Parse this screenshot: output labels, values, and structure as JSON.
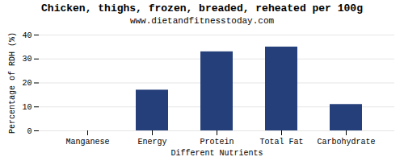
{
  "chart_data": {
    "type": "bar",
    "title": "Chicken, thighs, frozen, breaded, reheated per 100g",
    "subtitle": "www.dietandfitnesstoday.com",
    "xlabel": "Different Nutrients",
    "ylabel": "Percentage of RDH (%)",
    "categories": [
      "Manganese",
      "Energy",
      "Protein",
      "Total Fat",
      "Carbohydrate"
    ],
    "values": [
      0,
      17,
      33,
      35,
      11
    ],
    "color": "#253F7A",
    "ylim": [
      0,
      40
    ],
    "yticks": [
      0,
      10,
      20,
      30,
      40
    ],
    "grid": true
  }
}
